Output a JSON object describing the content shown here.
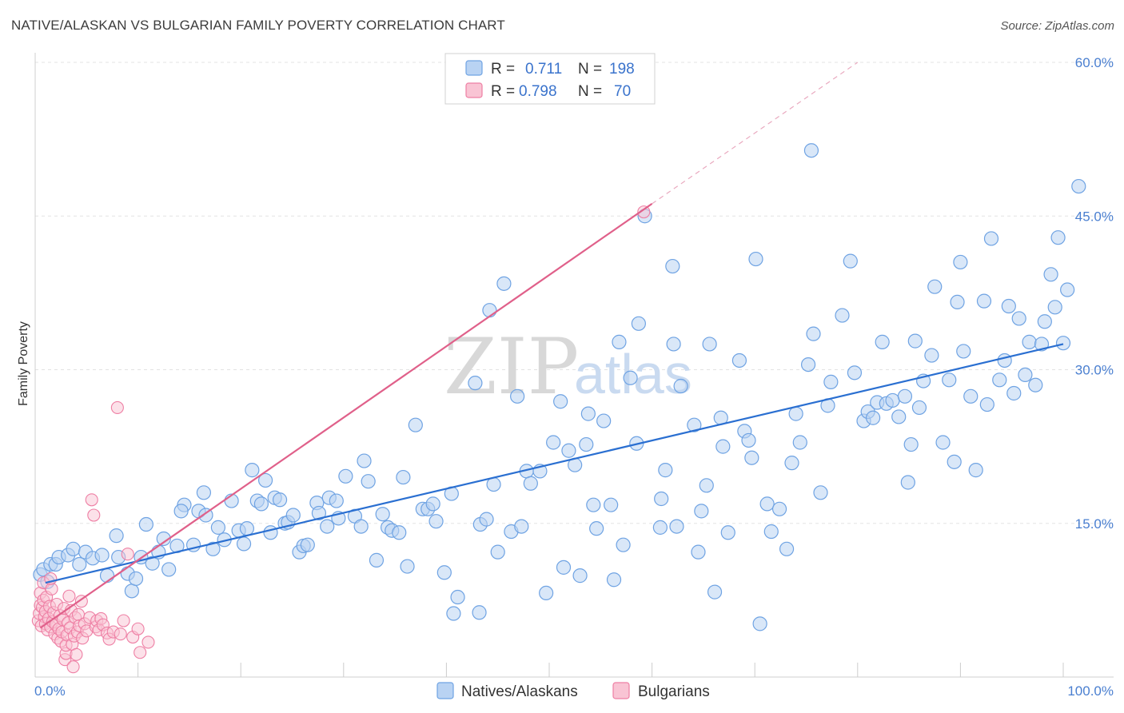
{
  "header": {
    "title": "NATIVE/ALASKAN VS BULGARIAN FAMILY POVERTY CORRELATION CHART",
    "source": "Source: ZipAtlas.com"
  },
  "legend": {
    "r_label": "R =",
    "n_label": "N =",
    "series": [
      {
        "r": "0.711",
        "n": "198"
      },
      {
        "r": "0.798",
        "n": "70"
      }
    ]
  },
  "colors": {
    "native": "#6fa3e3",
    "native_fill": "#b9d3f3",
    "native_line": "#2a6fd1",
    "bulgarian": "#ee7fa4",
    "bulgarian_fill": "#f9c4d4",
    "bulgarian_line": "#e0608a",
    "tick_text": "#4a7fd0"
  },
  "watermark": {
    "zip": "ZIP",
    "atlas": "atlas"
  },
  "chart_data": {
    "type": "scatter",
    "title": "NATIVE/ALASKAN VS BULGARIAN FAMILY POVERTY CORRELATION CHART",
    "xlabel": "",
    "ylabel": "Family Poverty",
    "xlim": [
      0,
      100
    ],
    "ylim": [
      0,
      60
    ],
    "x_tick_labels": [
      "0.0%",
      "100.0%"
    ],
    "y_ticks": [
      15,
      30,
      45,
      60
    ],
    "y_tick_labels": [
      "15.0%",
      "30.0%",
      "45.0%",
      "60.0%"
    ],
    "grid": true,
    "legend_position": "top-center",
    "series": [
      {
        "name": "Natives/Alaskans",
        "r": 0.711,
        "n": 198,
        "trend": {
          "x0": 1,
          "y0": 9.2,
          "x1": 100,
          "y1": 32.5
        },
        "points": [
          [
            0.5,
            10.0
          ],
          [
            0.8,
            10.5
          ],
          [
            1.2,
            9.3
          ],
          [
            1.5,
            11.0
          ],
          [
            2.0,
            11.0
          ],
          [
            2.3,
            11.7
          ],
          [
            3.2,
            11.9
          ],
          [
            3.7,
            12.5
          ],
          [
            4.3,
            11.0
          ],
          [
            4.9,
            12.2
          ],
          [
            5.6,
            11.6
          ],
          [
            6.5,
            11.9
          ],
          [
            7.0,
            9.9
          ],
          [
            8.1,
            11.7
          ],
          [
            7.9,
            13.8
          ],
          [
            9.0,
            10.1
          ],
          [
            9.4,
            8.4
          ],
          [
            9.8,
            9.6
          ],
          [
            10.3,
            11.7
          ],
          [
            10.8,
            14.9
          ],
          [
            11.4,
            11.1
          ],
          [
            12.0,
            12.2
          ],
          [
            12.5,
            13.5
          ],
          [
            13.0,
            10.5
          ],
          [
            13.8,
            12.8
          ],
          [
            14.5,
            16.8
          ],
          [
            14.2,
            16.2
          ],
          [
            15.4,
            12.9
          ],
          [
            15.9,
            16.2
          ],
          [
            16.4,
            18.0
          ],
          [
            16.6,
            15.8
          ],
          [
            17.3,
            12.5
          ],
          [
            17.8,
            14.6
          ],
          [
            18.4,
            13.4
          ],
          [
            19.1,
            17.2
          ],
          [
            19.8,
            14.3
          ],
          [
            20.3,
            13.0
          ],
          [
            20.6,
            14.5
          ],
          [
            21.1,
            20.2
          ],
          [
            21.6,
            17.2
          ],
          [
            22.0,
            16.9
          ],
          [
            22.4,
            19.2
          ],
          [
            22.9,
            14.1
          ],
          [
            23.3,
            17.5
          ],
          [
            23.8,
            17.3
          ],
          [
            24.3,
            15.0
          ],
          [
            24.6,
            15.1
          ],
          [
            25.1,
            15.8
          ],
          [
            25.7,
            12.2
          ],
          [
            26.1,
            12.8
          ],
          [
            26.5,
            12.9
          ],
          [
            27.4,
            17.0
          ],
          [
            27.6,
            16.0
          ],
          [
            28.4,
            14.7
          ],
          [
            28.6,
            17.5
          ],
          [
            29.3,
            17.2
          ],
          [
            29.5,
            15.5
          ],
          [
            30.2,
            19.6
          ],
          [
            31.1,
            15.7
          ],
          [
            31.7,
            14.7
          ],
          [
            32.0,
            21.1
          ],
          [
            32.4,
            19.1
          ],
          [
            33.2,
            11.4
          ],
          [
            33.8,
            15.9
          ],
          [
            34.3,
            14.6
          ],
          [
            34.7,
            14.3
          ],
          [
            35.4,
            14.1
          ],
          [
            35.8,
            19.5
          ],
          [
            36.2,
            10.8
          ],
          [
            37.0,
            24.6
          ],
          [
            37.7,
            16.4
          ],
          [
            38.2,
            16.4
          ],
          [
            38.7,
            16.9
          ],
          [
            39.0,
            15.2
          ],
          [
            39.8,
            10.2
          ],
          [
            40.5,
            17.9
          ],
          [
            41.1,
            7.8
          ],
          [
            40.7,
            6.2
          ],
          [
            42.8,
            28.7
          ],
          [
            43.3,
            14.9
          ],
          [
            43.9,
            15.4
          ],
          [
            43.2,
            6.3
          ],
          [
            44.2,
            35.8
          ],
          [
            44.6,
            18.8
          ],
          [
            45.0,
            12.2
          ],
          [
            45.6,
            38.4
          ],
          [
            46.3,
            14.2
          ],
          [
            46.9,
            27.4
          ],
          [
            47.3,
            14.7
          ],
          [
            47.8,
            20.1
          ],
          [
            48.2,
            18.9
          ],
          [
            49.1,
            20.1
          ],
          [
            49.7,
            8.2
          ],
          [
            50.4,
            22.9
          ],
          [
            51.1,
            26.9
          ],
          [
            51.4,
            10.7
          ],
          [
            51.9,
            22.1
          ],
          [
            52.5,
            20.7
          ],
          [
            53.0,
            9.9
          ],
          [
            53.6,
            22.7
          ],
          [
            53.8,
            25.7
          ],
          [
            54.3,
            16.8
          ],
          [
            54.6,
            14.5
          ],
          [
            55.3,
            25.0
          ],
          [
            56.0,
            16.8
          ],
          [
            56.3,
            9.5
          ],
          [
            56.8,
            32.7
          ],
          [
            57.2,
            12.9
          ],
          [
            57.9,
            29.2
          ],
          [
            58.5,
            22.8
          ],
          [
            58.7,
            34.5
          ],
          [
            59.3,
            45.0
          ],
          [
            60.8,
            14.6
          ],
          [
            60.9,
            17.4
          ],
          [
            61.3,
            20.2
          ],
          [
            62.0,
            40.1
          ],
          [
            62.1,
            32.5
          ],
          [
            62.4,
            14.7
          ],
          [
            62.8,
            28.4
          ],
          [
            64.1,
            24.6
          ],
          [
            64.5,
            12.2
          ],
          [
            64.8,
            16.2
          ],
          [
            65.3,
            18.7
          ],
          [
            66.1,
            8.3
          ],
          [
            65.6,
            32.5
          ],
          [
            66.7,
            25.3
          ],
          [
            66.9,
            22.5
          ],
          [
            67.4,
            14.1
          ],
          [
            68.5,
            30.9
          ],
          [
            69.0,
            24.0
          ],
          [
            69.4,
            23.1
          ],
          [
            69.7,
            21.4
          ],
          [
            70.1,
            40.8
          ],
          [
            70.5,
            5.2
          ],
          [
            71.2,
            16.9
          ],
          [
            71.6,
            14.2
          ],
          [
            72.4,
            16.4
          ],
          [
            73.1,
            12.5
          ],
          [
            73.6,
            20.9
          ],
          [
            74.0,
            25.7
          ],
          [
            74.4,
            22.9
          ],
          [
            75.2,
            30.5
          ],
          [
            75.7,
            33.5
          ],
          [
            76.4,
            18.0
          ],
          [
            77.1,
            26.5
          ],
          [
            77.4,
            28.8
          ],
          [
            78.5,
            35.3
          ],
          [
            79.3,
            40.6
          ],
          [
            79.7,
            29.7
          ],
          [
            80.6,
            25.0
          ],
          [
            81.0,
            25.9
          ],
          [
            81.5,
            25.3
          ],
          [
            81.9,
            26.8
          ],
          [
            82.4,
            32.7
          ],
          [
            82.8,
            26.7
          ],
          [
            83.4,
            27.0
          ],
          [
            84.0,
            25.4
          ],
          [
            84.6,
            27.4
          ],
          [
            84.9,
            19.0
          ],
          [
            85.2,
            22.7
          ],
          [
            85.6,
            32.8
          ],
          [
            86.0,
            26.3
          ],
          [
            86.4,
            28.9
          ],
          [
            87.2,
            31.4
          ],
          [
            87.5,
            38.1
          ],
          [
            88.3,
            22.9
          ],
          [
            88.9,
            29.0
          ],
          [
            89.4,
            21.0
          ],
          [
            89.7,
            36.6
          ],
          [
            90.0,
            40.5
          ],
          [
            90.3,
            31.8
          ],
          [
            91.0,
            27.4
          ],
          [
            91.5,
            20.2
          ],
          [
            92.3,
            36.7
          ],
          [
            92.6,
            26.6
          ],
          [
            93.0,
            42.8
          ],
          [
            93.8,
            29.0
          ],
          [
            94.3,
            30.9
          ],
          [
            94.7,
            36.2
          ],
          [
            95.2,
            27.7
          ],
          [
            95.7,
            35.0
          ],
          [
            96.3,
            29.5
          ],
          [
            96.7,
            32.7
          ],
          [
            97.3,
            28.5
          ],
          [
            97.9,
            32.5
          ],
          [
            98.2,
            34.7
          ],
          [
            98.8,
            39.3
          ],
          [
            99.2,
            36.1
          ],
          [
            99.5,
            42.9
          ],
          [
            100.0,
            32.6
          ],
          [
            100.4,
            37.8
          ],
          [
            101.5,
            47.9
          ],
          [
            75.5,
            51.4
          ]
        ]
      },
      {
        "name": "Bulgarians",
        "r": 0.798,
        "n": 70,
        "trend": {
          "x0": 0.5,
          "y0": 4.8,
          "x1": 60,
          "y1": 46.2
        },
        "trend_dashed": {
          "x0": 60,
          "y0": 46.2,
          "x1": 80,
          "y1": 60
        },
        "points": [
          [
            0.3,
            5.5
          ],
          [
            0.4,
            6.2
          ],
          [
            0.5,
            7.0
          ],
          [
            0.5,
            8.2
          ],
          [
            0.6,
            5.0
          ],
          [
            0.7,
            6.8
          ],
          [
            0.8,
            7.5
          ],
          [
            0.8,
            9.2
          ],
          [
            0.9,
            5.9
          ],
          [
            1.0,
            5.2
          ],
          [
            1.0,
            6.4
          ],
          [
            1.1,
            7.8
          ],
          [
            1.2,
            4.6
          ],
          [
            1.3,
            5.7
          ],
          [
            1.4,
            6.9
          ],
          [
            1.5,
            4.9
          ],
          [
            1.6,
            8.6
          ],
          [
            1.7,
            5.4
          ],
          [
            1.8,
            6.3
          ],
          [
            1.9,
            4.2
          ],
          [
            2.0,
            5.1
          ],
          [
            2.1,
            7.1
          ],
          [
            2.2,
            3.8
          ],
          [
            2.3,
            4.7
          ],
          [
            2.4,
            6.0
          ],
          [
            2.5,
            3.5
          ],
          [
            2.6,
            4.4
          ],
          [
            2.7,
            5.6
          ],
          [
            2.8,
            6.7
          ],
          [
            2.9,
            1.7
          ],
          [
            3.0,
            2.3
          ],
          [
            3.0,
            3.1
          ],
          [
            3.1,
            4.1
          ],
          [
            3.2,
            5.3
          ],
          [
            3.3,
            7.9
          ],
          [
            3.4,
            4.8
          ],
          [
            3.5,
            6.5
          ],
          [
            3.6,
            3.2
          ],
          [
            3.7,
            1.0
          ],
          [
            3.8,
            4.0
          ],
          [
            3.9,
            5.8
          ],
          [
            4.0,
            2.2
          ],
          [
            4.1,
            4.4
          ],
          [
            4.2,
            6.1
          ],
          [
            4.3,
            5.0
          ],
          [
            4.5,
            7.4
          ],
          [
            4.6,
            3.8
          ],
          [
            4.8,
            5.2
          ],
          [
            5.0,
            4.5
          ],
          [
            5.3,
            5.8
          ],
          [
            5.5,
            17.3
          ],
          [
            5.7,
            15.8
          ],
          [
            5.9,
            4.9
          ],
          [
            6.0,
            5.5
          ],
          [
            6.2,
            4.6
          ],
          [
            6.4,
            5.7
          ],
          [
            6.6,
            5.1
          ],
          [
            7.0,
            4.3
          ],
          [
            7.2,
            3.7
          ],
          [
            7.6,
            4.4
          ],
          [
            8.0,
            26.3
          ],
          [
            8.3,
            4.2
          ],
          [
            8.6,
            5.5
          ],
          [
            9.0,
            12.0
          ],
          [
            9.5,
            3.9
          ],
          [
            10.0,
            4.7
          ],
          [
            10.2,
            2.4
          ],
          [
            11.0,
            3.4
          ],
          [
            59.2,
            45.4
          ],
          [
            1.5,
            9.6
          ]
        ]
      }
    ]
  },
  "bottom_legend": {
    "items": [
      {
        "label": "Natives/Alaskans"
      },
      {
        "label": "Bulgarians"
      }
    ]
  }
}
